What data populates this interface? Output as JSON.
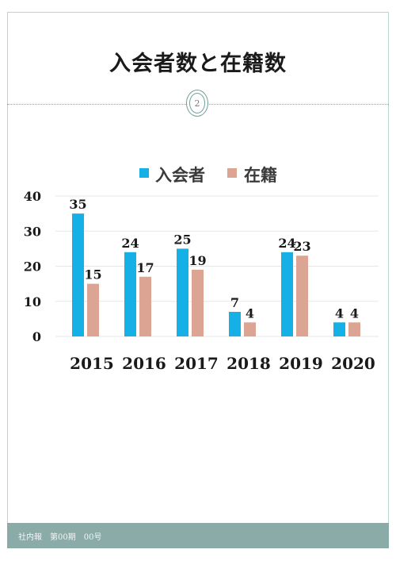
{
  "page": {
    "title": "入会者数と在籍数",
    "page_number": "2",
    "footer": "社内報　第00期　00号"
  },
  "colors": {
    "series_1": "#15b0e6",
    "series_2": "#dca593",
    "frame": "#bcd4d2",
    "footer_bg": "#8aaba8"
  },
  "chart_data": {
    "type": "bar",
    "title": "",
    "xlabel": "",
    "ylabel": "",
    "categories": [
      "2015",
      "2016",
      "2017",
      "2018",
      "2019",
      "2020"
    ],
    "series": [
      {
        "name": "入会者",
        "values": [
          35,
          24,
          25,
          7,
          24,
          4
        ]
      },
      {
        "name": "在籍",
        "values": [
          15,
          17,
          19,
          4,
          23,
          4
        ]
      }
    ],
    "ylim": [
      0,
      40
    ],
    "yticks": [
      "0",
      "10",
      "20",
      "30",
      "40"
    ],
    "grid": true,
    "legend": "top"
  }
}
